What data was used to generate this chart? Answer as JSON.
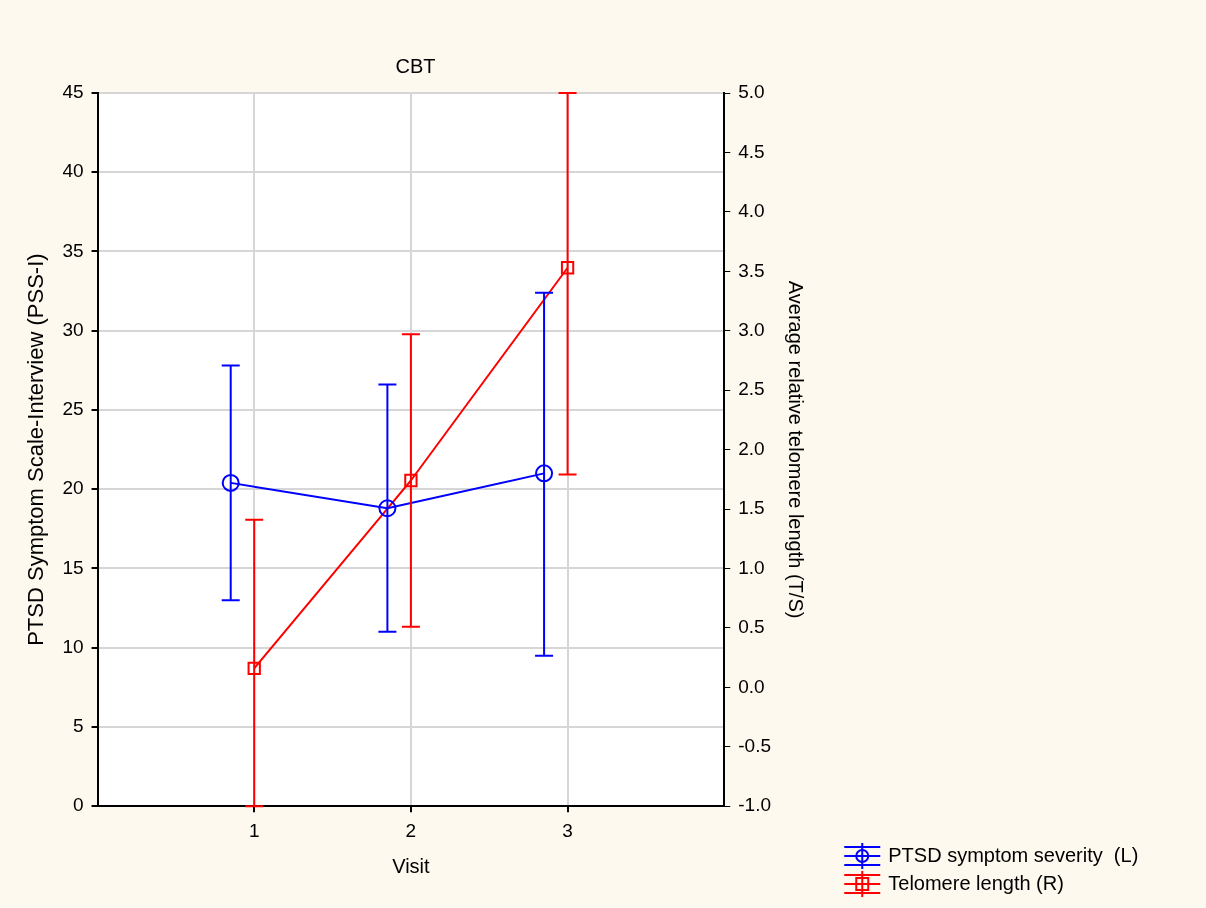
{
  "chart_data": {
    "type": "line",
    "title": "CBT",
    "xlabel": "Visit",
    "ylabel": "PTSD Symptom Scale-Interview (PSS-I)",
    "y2label": "Average relative telomere length (T/S)",
    "xlim": [
      0,
      4
    ],
    "xticks": [
      1,
      2,
      3
    ],
    "ylim": [
      0,
      45
    ],
    "yticks": [
      0,
      5,
      10,
      15,
      20,
      25,
      30,
      35,
      40,
      45
    ],
    "y2lim": [
      -1,
      5
    ],
    "y2ticks": [
      {
        "value": -1,
        "label": "-1.0"
      },
      {
        "value": -0.5,
        "label": "-0.5"
      },
      {
        "value": 0,
        "label": "0.0"
      },
      {
        "value": 0.5,
        "label": "0.5"
      },
      {
        "value": 1,
        "label": "1.0"
      },
      {
        "value": 1.5,
        "label": "1.5"
      },
      {
        "value": 2,
        "label": "2.0"
      },
      {
        "value": 2.5,
        "label": "2.5"
      },
      {
        "value": 3,
        "label": "3.0"
      },
      {
        "value": 3.5,
        "label": "3.5"
      },
      {
        "value": 4,
        "label": "4.0"
      },
      {
        "value": 4.5,
        "label": "4.5"
      },
      {
        "value": 5,
        "label": "5.0"
      }
    ],
    "grid": true,
    "legend": "bottom right",
    "series": [
      {
        "name": "PTSD symptom severity  (L)",
        "color": "#0000ff",
        "marker": "circle",
        "x": [
          0.85,
          1.85,
          2.85
        ],
        "values": [
          20.4,
          18.8,
          21.0
        ],
        "errors": [
          [
            13.0,
            27.8
          ],
          [
            11.0,
            26.6
          ],
          [
            9.5,
            32.4
          ]
        ]
      },
      {
        "name": "Telomere length (R)",
        "color": "#ff0000",
        "marker": "square",
        "axis": "y2",
        "x": [
          1,
          2,
          3
        ],
        "values": [
          0.16,
          1.74,
          3.53
        ],
        "errors": [
          [
            -1.0,
            1.41
          ],
          [
            0.51,
            2.97
          ],
          [
            1.79,
            5.0
          ]
        ]
      }
    ]
  }
}
